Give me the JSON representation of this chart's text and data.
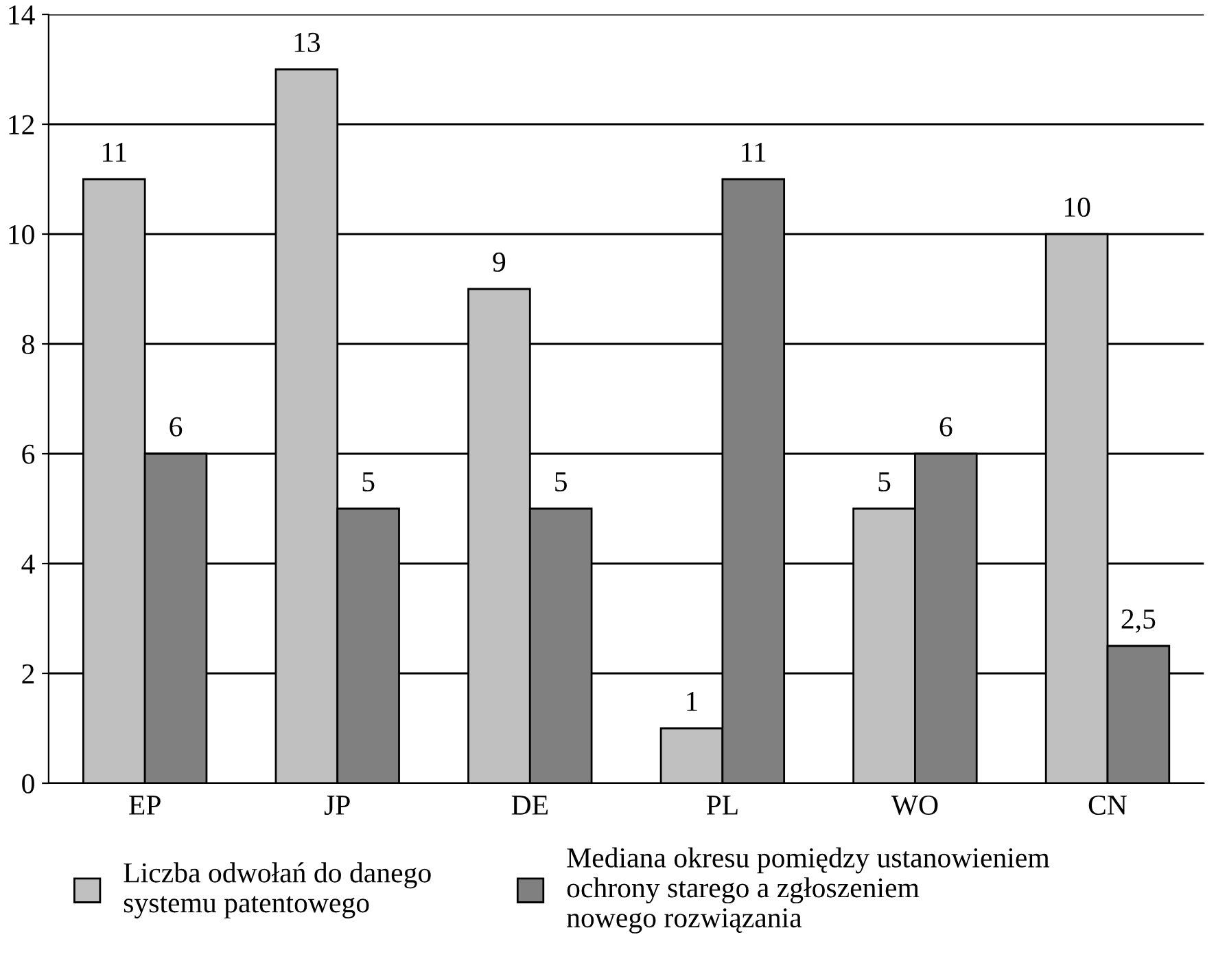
{
  "chart_data": {
    "type": "bar",
    "categories": [
      "EP",
      "JP",
      "DE",
      "PL",
      "WO",
      "CN"
    ],
    "series": [
      {
        "name": "Liczba odwołań do danego\nsystemu patentowego",
        "color": "#c0c0c0",
        "values": [
          11,
          13,
          9,
          1,
          5,
          10
        ],
        "value_labels": [
          "11",
          "13",
          "9",
          "1",
          "5",
          "10"
        ]
      },
      {
        "name": "Mediana okresu pomiędzy ustanowieniem\nochrony starego a zgłoszeniem\nnowego rozwiązania",
        "color": "#808080",
        "values": [
          6,
          5,
          5,
          11,
          6,
          2.5
        ],
        "value_labels": [
          "6",
          "5",
          "5",
          "11",
          "6",
          "2,5"
        ]
      }
    ],
    "ylim": [
      0,
      14
    ],
    "yticks": [
      0,
      2,
      4,
      6,
      8,
      10,
      12,
      14
    ],
    "grid": "y",
    "legend": "bottom"
  }
}
